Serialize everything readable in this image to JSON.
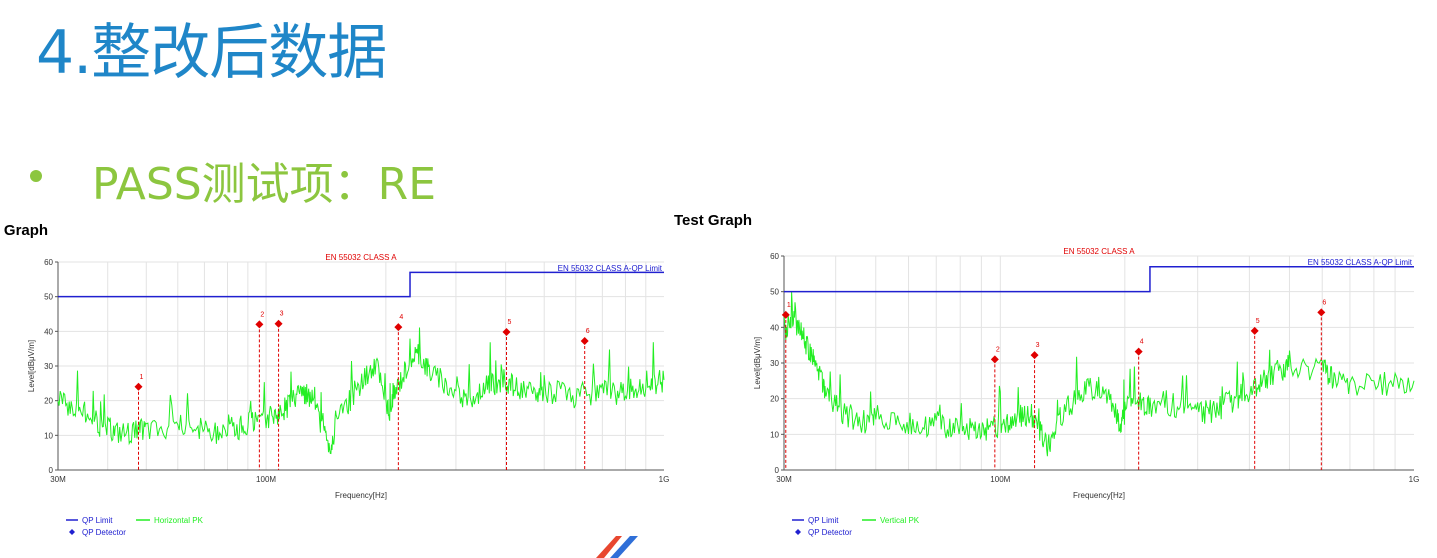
{
  "slide": {
    "title": "4.整改后数据",
    "bullet": "PASS测试项：RE"
  },
  "colors": {
    "title": "#1f86c8",
    "bullet": "#8cc63f",
    "limit_line": "#2020d0",
    "trace": "#22ee22",
    "marker": "#e00000",
    "standard_label": "#e00000"
  },
  "chart_data": [
    {
      "type": "line",
      "heading": "Test Graph",
      "standard": "EN 55032 CLASS A",
      "limit_label": "EN 55032 CLASS A-QP Limit",
      "xlabel": "Frequency[Hz]",
      "ylabel": "Level[dBμV/m]",
      "x_scale": "log",
      "xlim_mhz": [
        30,
        1000
      ],
      "ylim": [
        0,
        60
      ],
      "y_ticks": [
        0,
        10,
        20,
        30,
        40,
        50,
        60
      ],
      "x_tick_labels": [
        {
          "mhz": 30,
          "label": "30M"
        },
        {
          "mhz": 100,
          "label": "100M"
        },
        {
          "mhz": 1000,
          "label": "1G"
        }
      ],
      "grid": true,
      "limit": [
        {
          "from_mhz": 30,
          "to_mhz": 230,
          "level": 50
        },
        {
          "from_mhz": 230,
          "to_mhz": 1000,
          "level": 57
        }
      ],
      "trace_name": "Horizontal PK",
      "trace": [
        [
          30,
          21
        ],
        [
          32,
          19
        ],
        [
          34,
          18
        ],
        [
          36,
          16
        ],
        [
          38,
          13
        ],
        [
          40,
          12
        ],
        [
          42,
          11
        ],
        [
          45,
          11
        ],
        [
          48,
          11
        ],
        [
          50,
          12
        ],
        [
          55,
          11
        ],
        [
          60,
          13
        ],
        [
          65,
          11
        ],
        [
          70,
          12
        ],
        [
          75,
          11
        ],
        [
          80,
          13
        ],
        [
          85,
          12
        ],
        [
          90,
          13
        ],
        [
          95,
          15
        ],
        [
          100,
          14
        ],
        [
          105,
          16
        ],
        [
          110,
          17
        ],
        [
          115,
          19
        ],
        [
          120,
          21
        ],
        [
          125,
          22
        ],
        [
          130,
          20
        ],
        [
          135,
          16
        ],
        [
          140,
          11
        ],
        [
          145,
          7
        ],
        [
          150,
          13
        ],
        [
          160,
          19
        ],
        [
          170,
          24
        ],
        [
          180,
          27
        ],
        [
          190,
          30
        ],
        [
          200,
          20
        ],
        [
          205,
          15
        ],
        [
          210,
          22
        ],
        [
          220,
          27
        ],
        [
          230,
          32
        ],
        [
          240,
          34
        ],
        [
          250,
          31
        ],
        [
          260,
          28
        ],
        [
          280,
          25
        ],
        [
          300,
          22
        ],
        [
          320,
          21
        ],
        [
          340,
          22
        ],
        [
          360,
          24
        ],
        [
          380,
          25
        ],
        [
          400,
          26
        ],
        [
          420,
          24
        ],
        [
          450,
          22
        ],
        [
          480,
          22
        ],
        [
          500,
          23
        ],
        [
          550,
          22
        ],
        [
          600,
          21
        ],
        [
          650,
          22
        ],
        [
          700,
          23
        ],
        [
          750,
          22
        ],
        [
          800,
          23
        ],
        [
          850,
          23
        ],
        [
          900,
          24
        ],
        [
          950,
          25
        ],
        [
          1000,
          26
        ]
      ],
      "markers": [
        {
          "id": "1",
          "mhz": 47.8,
          "level": 24.0
        },
        {
          "id": "2",
          "mhz": 96.2,
          "level": 42.0
        },
        {
          "id": "3",
          "mhz": 107.5,
          "level": 42.2
        },
        {
          "id": "4",
          "mhz": 215.0,
          "level": 41.2
        },
        {
          "id": "5",
          "mhz": 402.0,
          "level": 39.8
        },
        {
          "id": "6",
          "mhz": 632.0,
          "level": 37.2
        }
      ],
      "legend": {
        "limit": "QP Limit",
        "trace": "Horizontal PK",
        "detector": "QP Detector"
      }
    },
    {
      "type": "line",
      "heading": "Test Graph",
      "standard": "EN 55032 CLASS A",
      "limit_label": "EN 55032 CLASS A-QP Limit",
      "xlabel": "Frequency[Hz]",
      "ylabel": "Level[dBμV/m]",
      "x_scale": "log",
      "xlim_mhz": [
        30,
        1000
      ],
      "ylim": [
        0,
        60
      ],
      "y_ticks": [
        0,
        10,
        20,
        30,
        40,
        50,
        60
      ],
      "x_tick_labels": [
        {
          "mhz": 30,
          "label": "30M"
        },
        {
          "mhz": 100,
          "label": "100M"
        },
        {
          "mhz": 1000,
          "label": "1G"
        }
      ],
      "grid": true,
      "limit": [
        {
          "from_mhz": 30,
          "to_mhz": 230,
          "level": 50
        },
        {
          "from_mhz": 230,
          "to_mhz": 1000,
          "level": 57
        }
      ],
      "trace_name": "Vertical PK",
      "trace": [
        [
          30,
          38
        ],
        [
          31,
          41
        ],
        [
          32,
          42
        ],
        [
          33,
          38
        ],
        [
          34,
          35
        ],
        [
          35,
          33
        ],
        [
          36,
          30
        ],
        [
          37,
          26
        ],
        [
          38,
          22
        ],
        [
          40,
          18
        ],
        [
          42,
          16
        ],
        [
          45,
          14
        ],
        [
          48,
          13
        ],
        [
          50,
          15
        ],
        [
          55,
          14
        ],
        [
          60,
          13
        ],
        [
          65,
          12
        ],
        [
          70,
          13
        ],
        [
          75,
          12
        ],
        [
          80,
          13
        ],
        [
          85,
          11
        ],
        [
          90,
          11
        ],
        [
          95,
          11
        ],
        [
          100,
          12
        ],
        [
          105,
          13
        ],
        [
          110,
          14
        ],
        [
          115,
          16
        ],
        [
          120,
          14
        ],
        [
          125,
          11
        ],
        [
          130,
          7
        ],
        [
          135,
          11
        ],
        [
          140,
          15
        ],
        [
          150,
          19
        ],
        [
          160,
          22
        ],
        [
          170,
          23
        ],
        [
          180,
          22
        ],
        [
          190,
          17
        ],
        [
          195,
          12
        ],
        [
          200,
          16
        ],
        [
          210,
          20
        ],
        [
          220,
          19
        ],
        [
          230,
          18
        ],
        [
          250,
          19
        ],
        [
          270,
          18
        ],
        [
          290,
          17
        ],
        [
          310,
          16
        ],
        [
          330,
          17
        ],
        [
          350,
          18
        ],
        [
          370,
          20
        ],
        [
          390,
          22
        ],
        [
          410,
          23
        ],
        [
          430,
          25
        ],
        [
          450,
          27
        ],
        [
          480,
          28
        ],
        [
          500,
          29
        ],
        [
          550,
          28
        ],
        [
          600,
          29
        ],
        [
          620,
          27
        ],
        [
          650,
          25
        ],
        [
          700,
          24
        ],
        [
          800,
          24
        ],
        [
          900,
          24
        ],
        [
          1000,
          25
        ]
      ],
      "markers": [
        {
          "id": "1",
          "mhz": 30.3,
          "level": 43.5
        },
        {
          "id": "2",
          "mhz": 97.0,
          "level": 31.0
        },
        {
          "id": "3",
          "mhz": 121.0,
          "level": 32.2
        },
        {
          "id": "4",
          "mhz": 216.0,
          "level": 33.2
        },
        {
          "id": "5",
          "mhz": 412.0,
          "level": 39.0
        },
        {
          "id": "6",
          "mhz": 597.0,
          "level": 44.2
        }
      ],
      "legend": {
        "limit": "QP Limit",
        "trace": "Vertical PK",
        "detector": "QP Detector"
      }
    }
  ]
}
